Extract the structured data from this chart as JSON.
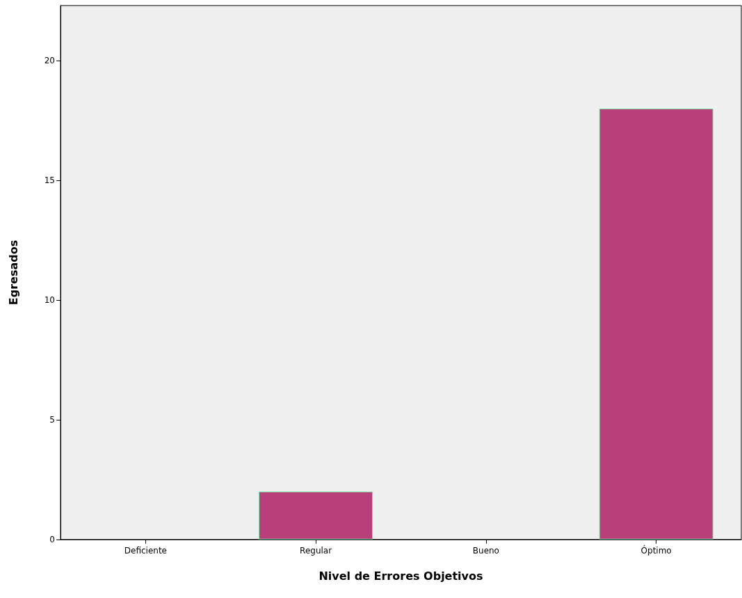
{
  "chart_data": {
    "type": "bar",
    "xlabel": "Nivel de Errores Objetivos",
    "ylabel": "Egresados",
    "categories": [
      "Deficiente",
      "Regular",
      "Bueno",
      "Óptimo"
    ],
    "values": [
      0,
      2,
      0,
      18
    ],
    "color": "#b93f7b",
    "ylim": [
      0,
      22.3
    ],
    "yticks": [
      0,
      5,
      10,
      15,
      20
    ],
    "grid": false
  }
}
